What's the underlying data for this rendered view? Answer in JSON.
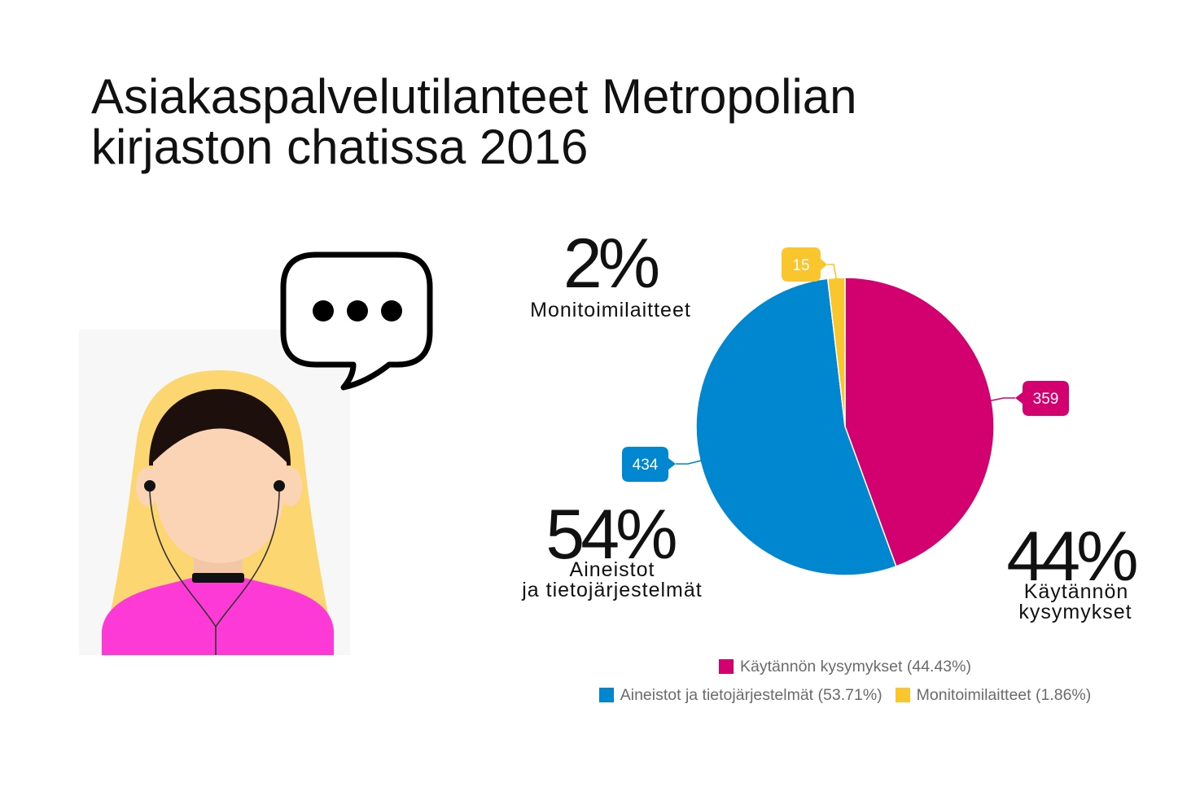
{
  "title": {
    "line1": "Asiakaspalvelutilanteet Metropolian",
    "line2": "kirjaston chatissa 2016"
  },
  "illustration": {
    "person_icon": "woman-with-earphones-icon",
    "bubble_icon": "speech-bubble-icon"
  },
  "chart_data": {
    "type": "pie",
    "categories": [
      "Käytännön kysymykset",
      "Aineistot ja tietojärjestelmät",
      "Monitoimilaitteet"
    ],
    "values": [
      359,
      434,
      15
    ],
    "percent_labels": [
      "(44.43%)",
      "(53.71%)",
      "(1.86%)"
    ],
    "colors": [
      "#d3006f",
      "#0087cf",
      "#fac62e"
    ],
    "legend_placement": "bottom",
    "annotations": {
      "monitoimilaitteet": {
        "percent": "2%",
        "lines": [
          "Monitoimilaitteet"
        ]
      },
      "aineistot": {
        "percent": "54%",
        "lines": [
          "Aineistot",
          "ja tietojärjestelmät"
        ]
      },
      "kaytannon": {
        "percent": "44%",
        "lines": [
          "Käytännön",
          "kysymykset"
        ]
      }
    }
  }
}
